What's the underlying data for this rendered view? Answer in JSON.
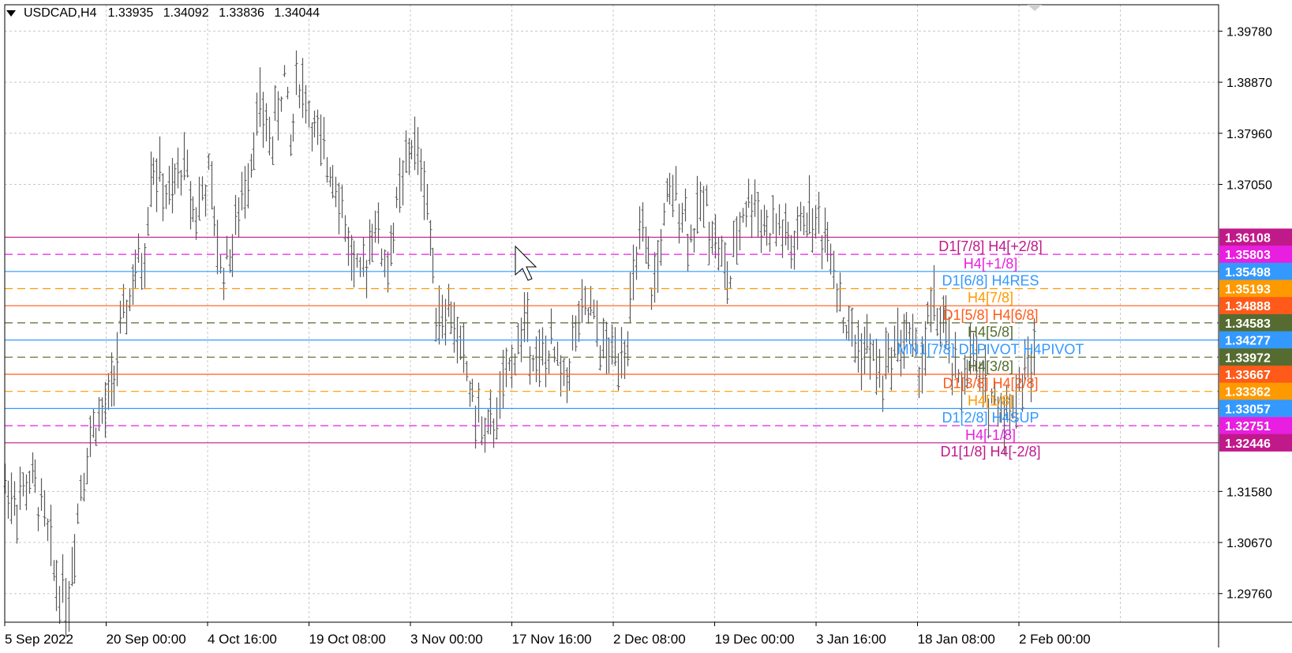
{
  "header": {
    "symbol_tf": "USDCAD,H4",
    "ohlc": [
      "1.33935",
      "1.34092",
      "1.33836",
      "1.34044"
    ]
  },
  "price_axis": {
    "ticks": [
      "1.39780",
      "1.38870",
      "1.37960",
      "1.37050",
      "1.31580",
      "1.30670",
      "1.29760"
    ],
    "tick_values": [
      1.3978,
      1.3887,
      1.3796,
      1.3705,
      1.3158,
      1.3067,
      1.2976
    ]
  },
  "time_axis": {
    "labels": [
      "5 Sep 2022",
      "20 Sep 00:00",
      "4 Oct 16:00",
      "19 Oct 08:00",
      "3 Nov 00:00",
      "17 Nov 16:00",
      "2 Dec 08:00",
      "19 Dec 00:00",
      "3 Jan 16:00",
      "18 Jan 08:00",
      "2 Feb 00:00"
    ]
  },
  "levels": [
    {
      "price": 1.36108,
      "value": "1.36108",
      "label": "",
      "color": "#c0198a",
      "style": "solid"
    },
    {
      "price": 1.35803,
      "value": "1.35803",
      "label": "D1[7/8] H4[+2/8]",
      "color": "#e81ee0",
      "style": "dashed",
      "label_color": "#c0198a"
    },
    {
      "price": 1.35498,
      "value": "1.35498",
      "label": "H4[+1/8]",
      "color": "#3399ff",
      "style": "solid",
      "label_color": "#e81ee0"
    },
    {
      "price": 1.35193,
      "value": "1.35193",
      "label": "D1[6/8] H4RES",
      "color": "#ff9900",
      "style": "dashed",
      "label_color": "#3399ff"
    },
    {
      "price": 1.34888,
      "value": "1.34888",
      "label": "H4[7/8]",
      "color": "#ff5a1a",
      "style": "solid",
      "label_color": "#ff9900"
    },
    {
      "price": 1.34583,
      "value": "1.34583",
      "label": "D1[5/8] H4[6/8]",
      "color": "#556b2f",
      "style": "dashed",
      "label_color": "#ff5a1a"
    },
    {
      "price": 1.34277,
      "value": "1.34277",
      "label": "H4[5/8]",
      "color": "#3399ff",
      "style": "solid",
      "label_color": "#556b2f"
    },
    {
      "price": 1.33972,
      "value": "1.33972",
      "label": "MN1[7/8] D1PIVOT H4PIVOT",
      "color": "#556b2f",
      "style": "dashed",
      "label_color": "#3399ff"
    },
    {
      "price": 1.33667,
      "value": "1.33667",
      "label": "H4[3/8]",
      "color": "#ff5a1a",
      "style": "solid",
      "label_color": "#556b2f"
    },
    {
      "price": 1.33362,
      "value": "1.33362",
      "label": "D1[3/8] H4[2/8]",
      "color": "#ff9900",
      "style": "dashed",
      "label_color": "#ff5a1a"
    },
    {
      "price": 1.33057,
      "value": "1.33057",
      "label": "H4[1/8]",
      "color": "#3399ff",
      "style": "solid",
      "label_color": "#ff9900"
    },
    {
      "price": 1.32751,
      "value": "1.32751",
      "label": "D1[2/8] H4SUP",
      "color": "#e81ee0",
      "style": "dashed",
      "label_color": "#3399ff"
    },
    {
      "price": 1.32446,
      "value": "1.32446",
      "label": "H4[-1/8]",
      "color": "#c0198a",
      "style": "solid",
      "label_color": "#e81ee0"
    },
    {
      "price": null,
      "value": "",
      "label": "D1[1/8] H4[-2/8]",
      "color": "#c0198a",
      "style": "none",
      "label_color": "#c0198a"
    }
  ],
  "price_path": [
    [
      0.0,
      1.317
    ],
    [
      0.01,
      1.314
    ],
    [
      0.02,
      1.318
    ],
    [
      0.03,
      1.312
    ],
    [
      0.04,
      1.3
    ],
    [
      0.05,
      1.297
    ],
    [
      0.06,
      1.318
    ],
    [
      0.07,
      1.328
    ],
    [
      0.08,
      1.33
    ],
    [
      0.09,
      1.342
    ],
    [
      0.1,
      1.353
    ],
    [
      0.11,
      1.358
    ],
    [
      0.115,
      1.375
    ],
    [
      0.13,
      1.367
    ],
    [
      0.14,
      1.375
    ],
    [
      0.15,
      1.365
    ],
    [
      0.16,
      1.372
    ],
    [
      0.17,
      1.355
    ],
    [
      0.18,
      1.36
    ],
    [
      0.19,
      1.372
    ],
    [
      0.2,
      1.384
    ],
    [
      0.21,
      1.378
    ],
    [
      0.22,
      1.39
    ],
    [
      0.225,
      1.376
    ],
    [
      0.23,
      1.391
    ],
    [
      0.24,
      1.383
    ],
    [
      0.25,
      1.375
    ],
    [
      0.26,
      1.373
    ],
    [
      0.27,
      1.36
    ],
    [
      0.28,
      1.352
    ],
    [
      0.29,
      1.365
    ],
    [
      0.3,
      1.355
    ],
    [
      0.31,
      1.368
    ],
    [
      0.32,
      1.378
    ],
    [
      0.33,
      1.372
    ],
    [
      0.34,
      1.348
    ],
    [
      0.35,
      1.348
    ],
    [
      0.36,
      1.34
    ],
    [
      0.37,
      1.33
    ],
    [
      0.38,
      1.325
    ],
    [
      0.39,
      1.332
    ],
    [
      0.4,
      1.34
    ],
    [
      0.41,
      1.346
    ],
    [
      0.42,
      1.338
    ],
    [
      0.43,
      1.341
    ],
    [
      0.44,
      1.335
    ],
    [
      0.45,
      1.345
    ],
    [
      0.46,
      1.348
    ],
    [
      0.47,
      1.341
    ],
    [
      0.48,
      1.34
    ],
    [
      0.49,
      1.344
    ],
    [
      0.5,
      1.362
    ],
    [
      0.51,
      1.351
    ],
    [
      0.52,
      1.366
    ],
    [
      0.53,
      1.369
    ],
    [
      0.54,
      1.361
    ],
    [
      0.55,
      1.368
    ],
    [
      0.56,
      1.36
    ],
    [
      0.57,
      1.352
    ],
    [
      0.58,
      1.366
    ],
    [
      0.59,
      1.368
    ],
    [
      0.6,
      1.362
    ],
    [
      0.61,
      1.363
    ],
    [
      0.62,
      1.358
    ],
    [
      0.63,
      1.366
    ],
    [
      0.64,
      1.363
    ],
    [
      0.65,
      1.36
    ],
    [
      0.66,
      1.346
    ],
    [
      0.67,
      1.342
    ],
    [
      0.68,
      1.341
    ],
    [
      0.69,
      1.336
    ],
    [
      0.7,
      1.342
    ],
    [
      0.71,
      1.344
    ],
    [
      0.72,
      1.338
    ],
    [
      0.73,
      1.349
    ],
    [
      0.74,
      1.344
    ],
    [
      0.75,
      1.334
    ],
    [
      0.76,
      1.34
    ],
    [
      0.77,
      1.334
    ],
    [
      0.78,
      1.332
    ],
    [
      0.79,
      1.33
    ],
    [
      0.8,
      1.336
    ],
    [
      0.81,
      1.34
    ]
  ],
  "colors": {
    "bar": "#5a5a5a",
    "grid": "#c8c8c8",
    "axis_text": "#000000"
  }
}
